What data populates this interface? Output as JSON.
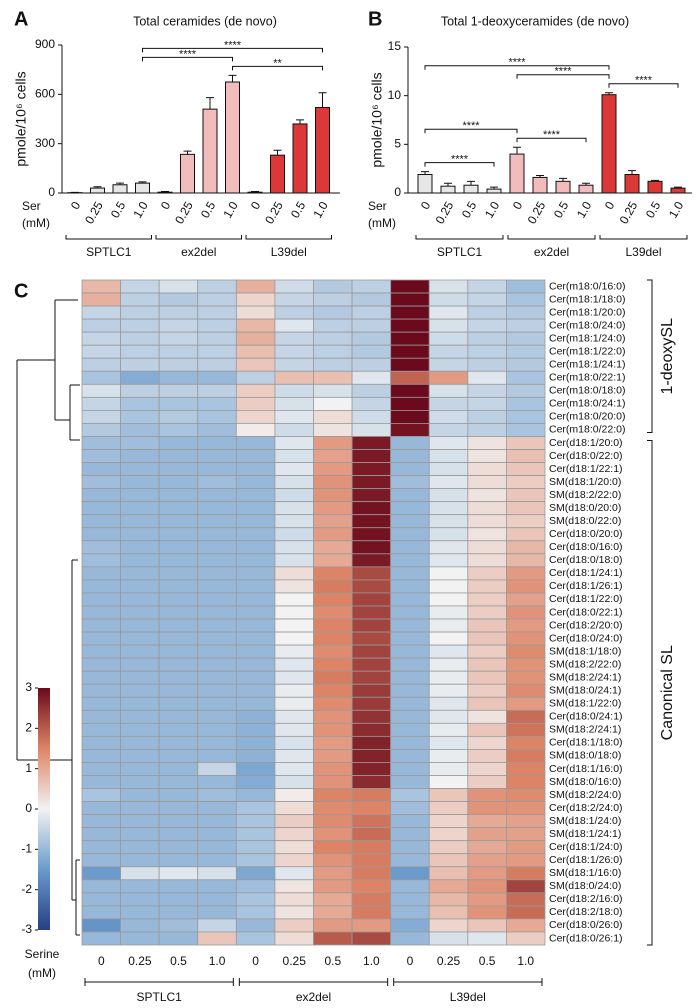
{
  "chart_data": [
    {
      "type": "bar",
      "panel": "A",
      "title": "Total ceramides (de novo)",
      "ylabel": "pmole/10⁶ cells",
      "xlabel": [
        "Ser",
        "(mM)"
      ],
      "categories": [
        "0",
        "0.25",
        "0.5",
        "1.0",
        "0",
        "0.25",
        "0.5",
        "1.0",
        "0",
        "0.25",
        "0.5",
        "1.0"
      ],
      "groups": [
        "SPTLC1",
        "ex2del",
        "L39del"
      ],
      "group_colors": [
        "#e6e6e6",
        "#f3bcbc",
        "#dc3838"
      ],
      "values": [
        2,
        30,
        50,
        60,
        5,
        235,
        510,
        675,
        5,
        230,
        420,
        520
      ],
      "errors": [
        2,
        8,
        10,
        8,
        4,
        20,
        70,
        40,
        4,
        30,
        25,
        90
      ],
      "ylim": [
        0,
        900
      ],
      "yticks": [
        0,
        300,
        600,
        900
      ],
      "annotations": [
        {
          "label": "**",
          "pair": [
            7,
            11
          ]
        },
        {
          "label": "****",
          "pair": [
            3,
            7
          ]
        },
        {
          "label": "****",
          "pair": [
            3,
            11
          ]
        }
      ]
    },
    {
      "type": "bar",
      "panel": "B",
      "title": "Total 1-deoxyceramides (de novo)",
      "ylabel": "pmole/10⁶ cells",
      "xlabel": [
        "Ser",
        "(mM)"
      ],
      "categories": [
        "0",
        "0.25",
        "0.5",
        "1.0",
        "0",
        "0.25",
        "0.5",
        "1.0",
        "0",
        "0.25",
        "0.5",
        "1.0"
      ],
      "groups": [
        "SPTLC1",
        "ex2del",
        "L39del"
      ],
      "group_colors": [
        "#e6e6e6",
        "#f3bcbc",
        "#dc3838"
      ],
      "values": [
        1.9,
        0.7,
        0.8,
        0.4,
        4.0,
        1.6,
        1.2,
        0.8,
        10.1,
        1.9,
        1.2,
        0.5
      ],
      "errors": [
        0.3,
        0.3,
        0.4,
        0.2,
        0.7,
        0.2,
        0.3,
        0.2,
        0.2,
        0.4,
        0.1,
        0.1
      ],
      "ylim": [
        0,
        15
      ],
      "yticks": [
        0,
        5,
        10,
        15
      ],
      "annotations": [
        {
          "label": "****",
          "pair": [
            0,
            3
          ]
        },
        {
          "label": "****",
          "pair": [
            4,
            7
          ]
        },
        {
          "label": "****",
          "pair": [
            8,
            11
          ]
        },
        {
          "label": "****",
          "pair": [
            0,
            4
          ]
        },
        {
          "label": "****",
          "pair": [
            4,
            8
          ]
        },
        {
          "label": "****",
          "pair": [
            0,
            8
          ]
        }
      ]
    },
    {
      "type": "heatmap",
      "panel": "C",
      "xlabel": [
        "Serine",
        "(mM)"
      ],
      "columns": [
        "0",
        "0.25",
        "0.5",
        "1.0",
        "0",
        "0.25",
        "0.5",
        "1.0",
        "0",
        "0.25",
        "0.5",
        "1.0"
      ],
      "col_groups": [
        "SPTLC1",
        "ex2del",
        "L39del"
      ],
      "row_groups": [
        {
          "name": "1-deoxySL",
          "count": 12
        },
        {
          "name": "Canonical SL",
          "count": 39
        }
      ],
      "rows": [
        "Cer(m18:0/16:0)",
        "Cer(m18:1/18:0)",
        "Cer(m18:1/20:0)",
        "Cer(m18:0/24:0)",
        "Cer(m18:1/24:0)",
        "Cer(m18:1/22:0)",
        "Cer(m18:1/24:1)",
        "Cer(m18:0/22:1)",
        "Cer(m18:0/18:0)",
        "Cer(m18:0/24:1)",
        "Cer(m18:0/20:0)",
        "Cer(m18:0/22:0)",
        "Cer(d18:1/20:0)",
        "Cer(d18:0/22:0)",
        "Cer(d18:1/22:1)",
        "SM(d18:1/20:0)",
        "SM(d18:2/22:0)",
        "SM(d18:0/20:0)",
        "SM(d18:0/22:0)",
        "Cer(d18:0/20:0)",
        "Cer(d18:0/16:0)",
        "Cer(d18:0/18:0)",
        "Cer(d18:1/24:1)",
        "Cer(d18:1/26:1)",
        "Cer(d18:1/22:0)",
        "Cer(d18:0/22:1)",
        "Cer(d18:2/20:0)",
        "Cer(d18:0/24:0)",
        "SM(d18:1/18:0)",
        "SM(d18:2/22:0)",
        "SM(d18:2/24:1)",
        "SM(d18:0/24:1)",
        "SM(d18:1/22:0)",
        "Cer(d18:0/24:1)",
        "SM(d18:2/24:1)",
        "Cer(d18:1/18:0)",
        "SM(d18:0/18:0)",
        "Cer(d18:1/16:0)",
        "SM(d18:0/16:0)",
        "SM(d18:2/24:0)",
        "Cer(d18:2/24:0)",
        "SM(d18:1/24:0)",
        "SM(d18:1/24:1)",
        "Cer(d18:1/24:0)",
        "Cer(d18:1/26:0)",
        "SM(d18:1/16:0)",
        "SM(d18:0/24:0)",
        "Cer(d18:2/16:0)",
        "Cer(d18:2/18:0)",
        "Cer(d18:0/26:0)",
        "Cer(d18:0/26:1)"
      ],
      "values": [
        [
          0.8,
          -0.5,
          -0.3,
          -0.6,
          0.9,
          -0.4,
          -0.7,
          -0.6,
          3,
          -0.3,
          -0.5,
          -0.9
        ],
        [
          0.9,
          -0.6,
          -0.7,
          -0.6,
          0.4,
          -0.5,
          -0.6,
          -0.7,
          3,
          -0.4,
          -0.5,
          -0.8
        ],
        [
          -0.5,
          -0.6,
          -0.6,
          -0.6,
          0.3,
          -0.6,
          -0.7,
          -0.6,
          3.2,
          -0.2,
          -0.6,
          -0.7
        ],
        [
          -0.6,
          -0.6,
          -0.5,
          -0.6,
          0.8,
          -0.2,
          -0.6,
          -0.6,
          3.1,
          -0.3,
          -0.5,
          -0.6
        ],
        [
          -0.5,
          -0.6,
          -0.5,
          -0.6,
          0.9,
          -0.5,
          -0.6,
          -0.7,
          3.1,
          -0.4,
          -0.6,
          -0.7
        ],
        [
          -0.5,
          -0.6,
          -0.6,
          -0.6,
          0.7,
          -0.5,
          -0.6,
          -0.7,
          3.1,
          -0.5,
          -0.6,
          -0.7
        ],
        [
          -0.6,
          -0.6,
          -0.6,
          -0.6,
          0.6,
          -0.5,
          -0.6,
          -0.6,
          3.1,
          -0.5,
          -0.6,
          -0.7
        ],
        [
          -0.8,
          -1.2,
          -1,
          -1,
          -0.6,
          0.7,
          0.7,
          -0.2,
          1.9,
          1.2,
          -0.2,
          -0.8
        ],
        [
          -0.3,
          -0.6,
          -0.6,
          -0.6,
          0.5,
          -0.4,
          -0.3,
          -0.6,
          3,
          -0.3,
          -0.5,
          -0.7
        ],
        [
          -0.5,
          -0.8,
          -0.8,
          -0.8,
          0.5,
          -0.3,
          0,
          -0.5,
          3,
          -0.5,
          -0.5,
          -0.8
        ],
        [
          -0.5,
          -0.8,
          -0.7,
          -0.8,
          0.4,
          -0.2,
          0.3,
          -0.4,
          3,
          -0.4,
          -0.6,
          -0.8
        ],
        [
          -0.7,
          -0.9,
          -0.8,
          -0.9,
          0.1,
          -0.4,
          0.2,
          -0.3,
          2.9,
          -0.5,
          -0.6,
          -0.8
        ],
        [
          -0.9,
          -0.9,
          -1,
          -1,
          -1,
          -0.2,
          1.2,
          2.8,
          -1,
          -0.2,
          0.2,
          0.6
        ],
        [
          -0.9,
          -1,
          -1,
          -1,
          -1,
          -0.3,
          1.1,
          2.8,
          -1,
          -0.3,
          0.2,
          0.7
        ],
        [
          -1,
          -1,
          -1,
          -1,
          -1,
          -0.2,
          1.2,
          2.8,
          -1,
          -0.3,
          0.3,
          0.6
        ],
        [
          -0.9,
          -1,
          -1,
          -0.9,
          -1,
          -0.3,
          1.3,
          2.8,
          -0.9,
          -0.2,
          0.3,
          0.5
        ],
        [
          -1,
          -1,
          -1,
          -1,
          -1,
          -0.4,
          1.3,
          2.8,
          -1,
          -0.3,
          0.2,
          0.6
        ],
        [
          -1,
          -1,
          -1,
          -1,
          -1,
          -0.3,
          1.2,
          2.9,
          -1,
          -0.3,
          0.3,
          0.6
        ],
        [
          -1,
          -1,
          -1,
          -1,
          -1,
          -0.3,
          1.1,
          2.9,
          -1,
          -0.3,
          0.3,
          0.5
        ],
        [
          -1,
          -1,
          -1,
          -1,
          -1,
          -0.4,
          1.2,
          2.9,
          -1,
          -0.3,
          0.2,
          0.6
        ],
        [
          -0.9,
          -1,
          -1,
          -1,
          -1,
          -0.3,
          1,
          2.9,
          -1,
          -0.2,
          0.3,
          0.8
        ],
        [
          -0.9,
          -1,
          -1,
          -1,
          -1,
          -0.3,
          1,
          2.8,
          -1,
          -0.2,
          0.3,
          0.8
        ],
        [
          -1,
          -1,
          -1,
          -1,
          -1,
          0.3,
          1.5,
          2.2,
          -1,
          0,
          0.5,
          1.2
        ],
        [
          -1,
          -1,
          -1,
          -1,
          -1,
          0.2,
          1.6,
          2.2,
          -1,
          0,
          0.5,
          1.3
        ],
        [
          -1,
          -1,
          -1,
          -1,
          -1,
          0,
          1.5,
          2.3,
          -1,
          0,
          0.5,
          1.1
        ],
        [
          -1,
          -1,
          -1,
          -1,
          -1,
          0,
          1.4,
          2.3,
          -1,
          -0.1,
          0.5,
          1.3
        ],
        [
          -1,
          -1,
          -1,
          -1,
          -1,
          0,
          1.5,
          2.3,
          -1,
          -0.1,
          0.6,
          1.2
        ],
        [
          -1,
          -1,
          -1,
          -1,
          -1,
          0,
          1.5,
          2.2,
          -1,
          0,
          0.6,
          1.3
        ],
        [
          -1,
          -1,
          -1,
          -1,
          -1,
          -0.1,
          1.4,
          2.3,
          -1,
          -0.2,
          0.5,
          1.4
        ],
        [
          -1,
          -1,
          -1,
          -1,
          -1,
          -0.2,
          1.5,
          2.3,
          -1,
          -0.1,
          0.6,
          1.3
        ],
        [
          -1,
          -1,
          -1,
          -1,
          -1,
          -0.2,
          1.6,
          2.3,
          -1,
          -0.1,
          0.6,
          1.3
        ],
        [
          -1,
          -1,
          -1,
          -1,
          -1,
          -0.1,
          1.5,
          2.4,
          -1,
          -0.1,
          0.5,
          1.4
        ],
        [
          -1,
          -1,
          -1,
          -1,
          -1,
          -0.1,
          1.4,
          2.4,
          -1,
          -0.2,
          0.6,
          1.2
        ],
        [
          -1,
          -1,
          -1,
          -1,
          -1.1,
          -0.2,
          1.3,
          2.5,
          -1,
          -0.2,
          0.2,
          1.8
        ],
        [
          -1,
          -1,
          -1,
          -1,
          -1.1,
          -0.2,
          1.3,
          2.6,
          -1,
          -0.1,
          0.6,
          1.7
        ],
        [
          -1,
          -1,
          -1,
          -1,
          -1.1,
          -0.3,
          1.2,
          2.7,
          -1,
          -0.2,
          0.4,
          1.5
        ],
        [
          -1,
          -1,
          -1,
          -1,
          -1.1,
          -0.2,
          1.2,
          2.7,
          -1,
          -0.1,
          0.5,
          1.6
        ],
        [
          -1,
          -1,
          -1,
          -0.5,
          -1.3,
          -0.2,
          1.3,
          2.7,
          -1,
          -0.1,
          0.4,
          1.5
        ],
        [
          -1,
          -1,
          -1,
          -1,
          -1.2,
          -0.3,
          1.3,
          2.6,
          -1,
          0,
          0.5,
          1.5
        ],
        [
          -0.8,
          -1,
          -1,
          -0.9,
          -1,
          0.1,
          1.5,
          1.6,
          -0.8,
          0.6,
          1.3,
          1.4
        ],
        [
          -1,
          -1,
          -1,
          -1,
          -0.8,
          0.3,
          1.4,
          1.5,
          -0.9,
          0.5,
          1.3,
          1.3
        ],
        [
          -1,
          -1,
          -1,
          -1,
          -0.8,
          0.5,
          1.4,
          1.7,
          -1,
          0.4,
          1,
          1.1
        ],
        [
          -1,
          -1,
          -1,
          -1,
          -0.8,
          0.4,
          1.3,
          1.8,
          -1,
          0.4,
          1.1,
          1.1
        ],
        [
          -1,
          -1,
          -1,
          -1,
          -0.8,
          0.3,
          1.5,
          1.6,
          -1,
          0.5,
          1,
          1.2
        ],
        [
          -1,
          -1,
          -1,
          -1,
          -0.8,
          0.4,
          1.3,
          1.6,
          -1,
          0.6,
          1.1,
          1.2
        ],
        [
          -1.5,
          -0.3,
          -0.2,
          -0.3,
          -1.3,
          -0.2,
          1.2,
          1.6,
          -1.5,
          0.7,
          1.2,
          1.6
        ],
        [
          -1,
          -1,
          -1,
          -1,
          -0.9,
          0.2,
          1.2,
          1.5,
          -1,
          1,
          1.3,
          2.3
        ],
        [
          -1,
          -1,
          -1,
          -1,
          -0.8,
          0.3,
          1,
          1.6,
          -1,
          0.8,
          1.2,
          1.8
        ],
        [
          -1,
          -1,
          -1,
          -1,
          -0.8,
          0.2,
          1,
          1.6,
          -1,
          0.7,
          1.3,
          1.8
        ],
        [
          -1.6,
          -1,
          -0.9,
          -0.5,
          -1,
          0.5,
          1.2,
          1.2,
          -1.2,
          0.4,
          0.6,
          1
        ],
        [
          -1,
          -1,
          -1,
          0.6,
          -0.8,
          0.3,
          2,
          2.2,
          -1,
          -0.3,
          -0.2,
          0.5
        ]
      ],
      "zlim": [
        -3,
        3
      ],
      "zticks": [
        -3,
        -2,
        -1,
        0,
        1,
        2,
        3
      ],
      "colormap": [
        "#263f85",
        "#6a9bcc",
        "#f2f2f2",
        "#de8466",
        "#6b0a1c"
      ]
    }
  ]
}
